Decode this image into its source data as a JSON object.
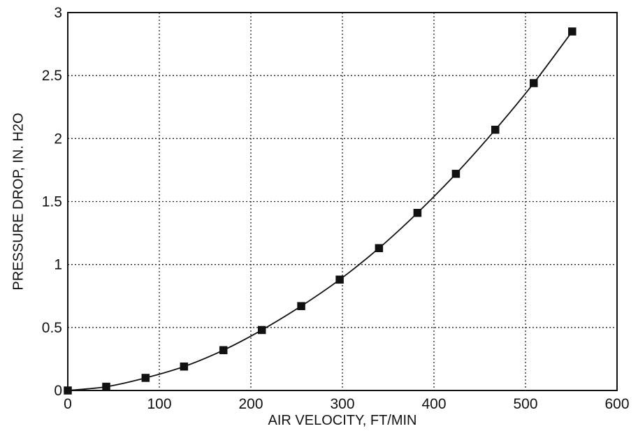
{
  "chart_data": {
    "type": "line",
    "title": "",
    "xlabel": "AIR VELOCITY, FT/MIN",
    "ylabel": "PRESSURE DROP, IN. H2O",
    "xlim": [
      0,
      600
    ],
    "ylim": [
      0,
      3
    ],
    "x_ticks": [
      "0",
      "100",
      "200",
      "300",
      "400",
      "500",
      "600"
    ],
    "y_ticks": [
      "0",
      "0.5",
      "1",
      "1.5",
      "2",
      "2.5",
      "3"
    ],
    "grid": true,
    "legend": "none",
    "marker": "square",
    "series": [
      {
        "x": [
          0,
          42,
          85,
          127,
          170,
          212,
          255,
          297,
          340,
          382,
          424,
          467,
          509,
          551
        ],
        "y": [
          0.0,
          0.03,
          0.1,
          0.19,
          0.32,
          0.48,
          0.67,
          0.88,
          1.13,
          1.41,
          1.72,
          2.07,
          2.44,
          2.85
        ]
      }
    ]
  }
}
